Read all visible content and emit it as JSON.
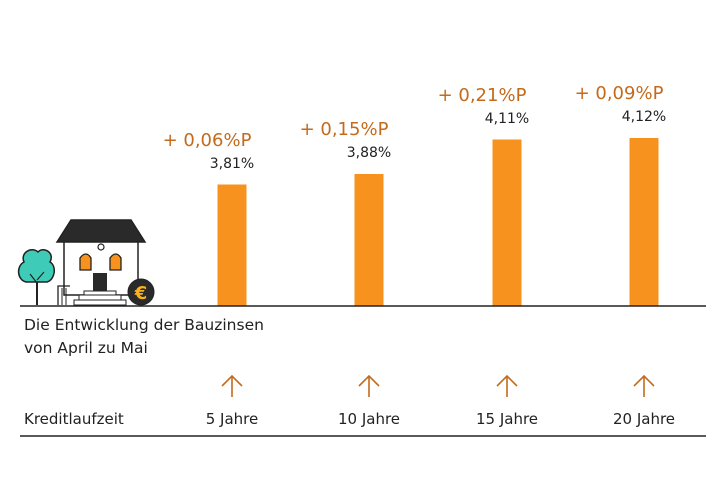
{
  "colors": {
    "bar": "#f7921e",
    "change_text": "#c46a1c",
    "axis": "#222222",
    "tree": "#3ecbb8"
  },
  "description": [
    "Die Entwicklung der Bauzinsen",
    "von April zu Mai"
  ],
  "x_axis_label": "Kreditlaufzeit",
  "icon": "house-with-euro-coin-icon",
  "chart_data": {
    "type": "bar",
    "categories": [
      "5 Jahre",
      "10 Jahre",
      "15 Jahre",
      "20 Jahre"
    ],
    "values": [
      3.81,
      3.88,
      4.11,
      4.12
    ],
    "value_labels": [
      "3,81%",
      "3,88%",
      "4,11%",
      "4,12%"
    ],
    "changes": [
      0.06,
      0.15,
      0.21,
      0.09
    ],
    "change_labels": [
      "+ 0,06%P",
      "+ 0,15%P",
      "+ 0,21%P",
      "+ 0,09%P"
    ],
    "unit": "%",
    "xlabel": "Kreditlaufzeit",
    "ylim": [
      3.0,
      4.2
    ],
    "grid": false
  }
}
